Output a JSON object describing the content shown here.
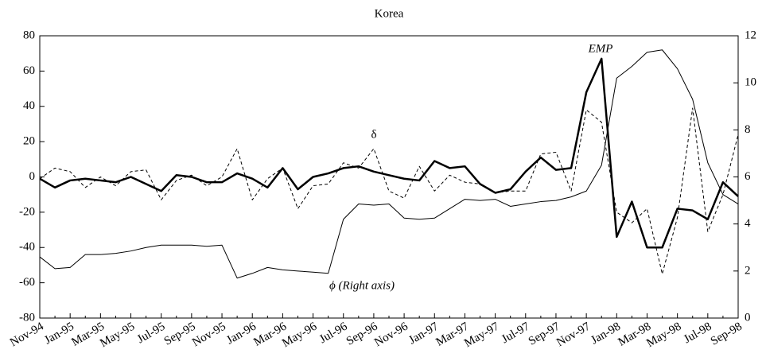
{
  "chart_data": {
    "type": "line",
    "title": "Korea",
    "categories": [
      "Nov-94",
      null,
      "Jan-95",
      null,
      "Mar-95",
      null,
      "May-95",
      null,
      "Jul-95",
      null,
      "Sep-95",
      null,
      "Nov-95",
      null,
      "Jan-96",
      null,
      "Mar-96",
      null,
      "May-96",
      null,
      "Jul-96",
      null,
      "Sep-96",
      null,
      "Nov-96",
      null,
      "Jan-97",
      null,
      "Mar-97",
      null,
      "May-97",
      null,
      "Jul-97",
      null,
      "Sep-97",
      null,
      "Nov-97",
      null,
      "Jan-98",
      null,
      "Mar-98",
      null,
      "May-98",
      null,
      "Jul-98",
      null,
      "Sep-98"
    ],
    "series": [
      {
        "name": "EMP",
        "color": "#000000",
        "style": "solid",
        "line_width": 2.5,
        "values": [
          -1,
          -6,
          -2,
          -1,
          -2,
          -3,
          0,
          -4,
          -8,
          1,
          0,
          -3,
          -3,
          2,
          -1,
          -6,
          5,
          -7,
          0,
          2,
          5,
          6,
          3,
          1,
          -1,
          -2,
          9,
          5,
          6,
          -4,
          -9,
          -7,
          3,
          11,
          4,
          5,
          48,
          67,
          -34,
          -14,
          -40,
          -40,
          -18,
          -19,
          -24,
          -3,
          -11
        ]
      },
      {
        "name": "δ",
        "color": "#000000",
        "style": "dashed",
        "line_width": 1,
        "values": [
          -1,
          5,
          3,
          -6,
          0,
          -5,
          3,
          4,
          -13,
          -2,
          1,
          -5,
          0,
          16,
          -13,
          -1,
          5,
          -18,
          -5,
          -4,
          8,
          5,
          16,
          -8,
          -12,
          6,
          -8,
          1,
          -3,
          -4,
          -9,
          -8,
          -8,
          13,
          14,
          -8,
          38,
          31,
          -20,
          -26,
          -18,
          -55,
          -23,
          39,
          -31,
          -10,
          24
        ]
      },
      {
        "name": "ϕ (Right axis)",
        "color": "#000000",
        "style": "solid",
        "line_width": 1,
        "axis": "y2",
        "values": [
          2.6,
          2.1,
          2.15,
          2.7,
          2.7,
          2.75,
          2.85,
          3.0,
          3.1,
          3.1,
          3.1,
          3.05,
          3.1,
          1.7,
          1.9,
          2.15,
          2.05,
          2.0,
          1.95,
          1.9,
          4.2,
          4.85,
          4.8,
          4.85,
          4.25,
          4.2,
          4.25,
          4.65,
          5.05,
          5.0,
          5.05,
          4.75,
          4.85,
          4.95,
          5.0,
          5.15,
          5.4,
          6.5,
          10.2,
          10.7,
          11.3,
          11.4,
          10.6,
          9.3,
          6.6,
          5.25,
          4.85
        ]
      }
    ],
    "ylim": [
      -80,
      80
    ],
    "yticks": [
      -80,
      -60,
      -40,
      -20,
      0,
      20,
      40,
      60,
      80
    ],
    "y2lim": [
      0,
      12
    ],
    "y2ticks": [
      0,
      2,
      4,
      6,
      8,
      10,
      12
    ],
    "grid": false
  }
}
